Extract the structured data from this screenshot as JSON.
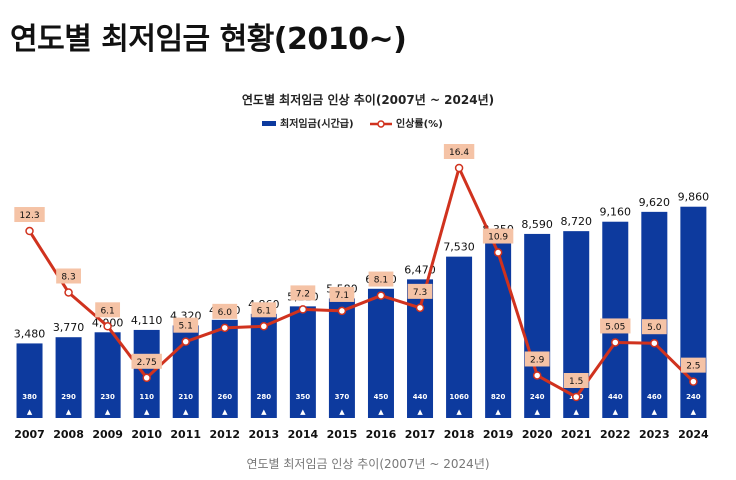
{
  "page_title": "연도별 최저임금 현황(2010~)",
  "caption": "연도별 최저임금 인상 추이(2007년 ~ 2024년)",
  "colors": {
    "bar": "#0D3A9E",
    "line": "#D0321E",
    "rate_box": "#F5C3A6",
    "marker": "#ffffff"
  },
  "chart_data": {
    "type": "bar",
    "title": "연도별 최저임금 인상 추이(2007년 ~ 2024년)",
    "legend_position": "top-center",
    "categories": [
      "2007",
      "2008",
      "2009",
      "2010",
      "2011",
      "2012",
      "2013",
      "2014",
      "2015",
      "2016",
      "2017",
      "2018",
      "2019",
      "2020",
      "2021",
      "2022",
      "2023",
      "2024"
    ],
    "series": [
      {
        "name": "최저임금(시간급)",
        "type": "bar",
        "values": [
          3480,
          3770,
          4000,
          4110,
          4320,
          4580,
          4860,
          5210,
          5580,
          6030,
          6470,
          7530,
          8350,
          8590,
          8720,
          9160,
          9620,
          9860
        ],
        "labels": [
          "3,480",
          "3,770",
          "4,000",
          "4,110",
          "4,320",
          "4,580",
          "4,860",
          "5,210",
          "5,580",
          "6,030",
          "6,470",
          "7,530",
          "8,350",
          "8,590",
          "8,720",
          "9,160",
          "9,620",
          "9,860"
        ]
      },
      {
        "name": "인상률(%)",
        "type": "line",
        "values": [
          12.3,
          8.3,
          6.1,
          2.75,
          5.1,
          6.0,
          6.1,
          7.2,
          7.1,
          8.1,
          7.3,
          16.4,
          10.9,
          2.9,
          1.5,
          5.05,
          5.0,
          2.5
        ],
        "labels": [
          "12.3",
          "8.3",
          "6.1",
          "2.75",
          "5.1",
          "6.0",
          "6.1",
          "7.2",
          "7.1",
          "8.1",
          "7.3",
          "16.4",
          "10.9",
          "2.9",
          "1.5",
          "5.05",
          "5.0",
          "2.5"
        ]
      }
    ],
    "increases": [
      380,
      290,
      230,
      110,
      210,
      260,
      280,
      350,
      370,
      450,
      440,
      1060,
      820,
      240,
      130,
      440,
      460,
      240
    ],
    "increase_marker": "▲",
    "ylim": [
      0,
      10500
    ],
    "rate_ylim": [
      0,
      18
    ]
  }
}
